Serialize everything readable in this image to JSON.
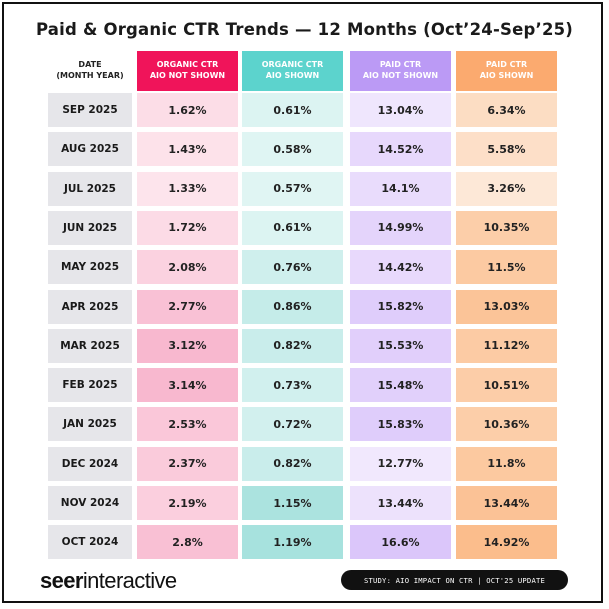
{
  "title": "Paid & Organic CTR Trends — 12 Months (Oct’24-Sep’25)",
  "header": {
    "date_line1": "DATE",
    "date_line2": "(MONTH YEAR)"
  },
  "footer": {
    "logo_bold": "seer",
    "logo_light": "interactive",
    "study_label": "STUDY: AIO IMPACT ON CTR | OCT'25 UPDATE"
  },
  "chart_data": {
    "type": "table",
    "title": "Paid & Organic CTR Trends — 12 Months (Oct’24-Sep’25)",
    "columns": [
      {
        "key": "date",
        "line1": "DATE",
        "line2": "(MONTH YEAR)"
      },
      {
        "key": "organic_no_aio",
        "line1": "ORGANIC CTR",
        "line2": "AIO NOT SHOWN",
        "header_color": "#f0145a"
      },
      {
        "key": "organic_aio",
        "line1": "ORGANIC CTR",
        "line2": "AIO SHOWN",
        "header_color": "#5cd3cd"
      },
      {
        "key": "paid_no_aio",
        "line1": "PAID CTR",
        "line2": "AIO NOT SHOWN",
        "header_color": "#bb9af5"
      },
      {
        "key": "paid_aio",
        "line1": "PAID CTR",
        "line2": "AIO SHOWN",
        "header_color": "#fbaa6f"
      }
    ],
    "rows": [
      {
        "date": "SEP 2025",
        "values": [
          "1.62%",
          "0.61%",
          "13.04%",
          "6.34%"
        ]
      },
      {
        "date": "AUG 2025",
        "values": [
          "1.43%",
          "0.58%",
          "14.52%",
          "5.58%"
        ]
      },
      {
        "date": "JUL 2025",
        "values": [
          "1.33%",
          "0.57%",
          "14.1%",
          "3.26%"
        ]
      },
      {
        "date": "JUN 2025",
        "values": [
          "1.72%",
          "0.61%",
          "14.99%",
          "10.35%"
        ]
      },
      {
        "date": "MAY 2025",
        "values": [
          "2.08%",
          "0.76%",
          "14.42%",
          "11.5%"
        ]
      },
      {
        "date": "APR 2025",
        "values": [
          "2.77%",
          "0.86%",
          "15.82%",
          "13.03%"
        ]
      },
      {
        "date": "MAR 2025",
        "values": [
          "3.12%",
          "0.82%",
          "15.53%",
          "11.12%"
        ]
      },
      {
        "date": "FEB 2025",
        "values": [
          "3.14%",
          "0.73%",
          "15.48%",
          "10.51%"
        ]
      },
      {
        "date": "JAN 2025",
        "values": [
          "2.53%",
          "0.72%",
          "15.83%",
          "10.36%"
        ]
      },
      {
        "date": "DEC 2024",
        "values": [
          "2.37%",
          "0.82%",
          "12.77%",
          "11.8%"
        ]
      },
      {
        "date": "NOV 2024",
        "values": [
          "2.19%",
          "1.15%",
          "13.44%",
          "13.44%"
        ]
      },
      {
        "date": "OCT 2024",
        "values": [
          "2.8%",
          "1.19%",
          "16.6%",
          "14.92%"
        ]
      }
    ],
    "cell_shading": {
      "organic_no_aio": {
        "light": "#fde4ec",
        "dark": "#f8b8cf"
      },
      "organic_aio": {
        "light": "#e0f5f3",
        "dark": "#a7e2de"
      },
      "paid_no_aio": {
        "light": "#f1e8fd",
        "dark": "#dbc6fa"
      },
      "paid_aio": {
        "light": "#fde8d7",
        "dark": "#fbbd8c"
      }
    }
  }
}
